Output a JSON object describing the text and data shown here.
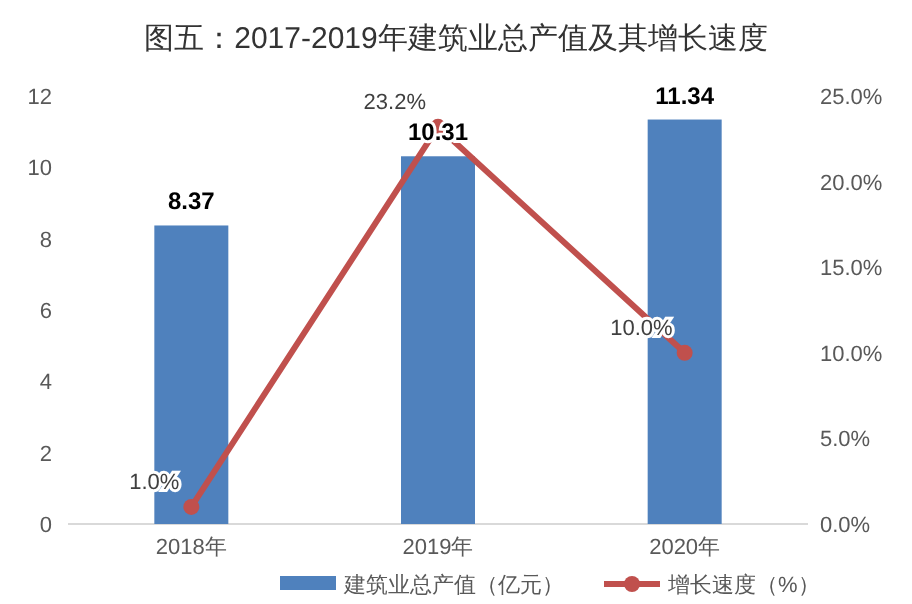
{
  "chart_data": {
    "type": "bar",
    "title": "图五：2017-2019年建筑业总产值及其增长速度",
    "categories": [
      "2018年",
      "2019年",
      "2020年"
    ],
    "series": [
      {
        "name": "建筑业总产值（亿元）",
        "color": "#4f81bd",
        "values": [
          8.37,
          10.31,
          11.34
        ],
        "value_labels": [
          "8.37",
          "10.31",
          "11.34"
        ]
      },
      {
        "name": "增长速度（%）",
        "type": "line",
        "axis": "y2",
        "color": "#c0504d",
        "values": [
          1.0,
          23.2,
          10.0
        ],
        "value_labels": [
          "1.0%",
          "23.2%",
          "10.0%"
        ]
      }
    ],
    "ylim": [
      0,
      12
    ],
    "yticks": [
      0,
      2,
      4,
      6,
      8,
      10,
      12
    ],
    "y2lim": [
      0,
      25
    ],
    "y2ticks": [
      {
        "value": 0,
        "label": "0.0%"
      },
      {
        "value": 5,
        "label": "5.0%"
      },
      {
        "value": 10,
        "label": "10.0%"
      },
      {
        "value": 15,
        "label": "15.0%"
      },
      {
        "value": 20,
        "label": "20.0%"
      },
      {
        "value": 25,
        "label": "25.0%"
      }
    ],
    "marker": "circle",
    "legend": "bottom"
  }
}
